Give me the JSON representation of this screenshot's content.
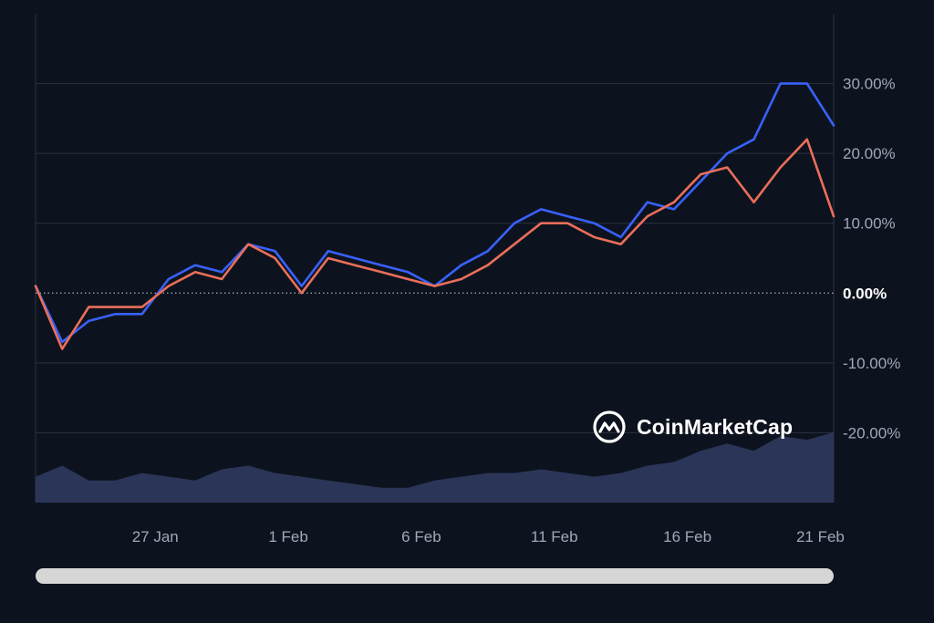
{
  "chart_data": {
    "type": "line",
    "x_tick_labels": [
      "27 Jan",
      "1 Feb",
      "6 Feb",
      "11 Feb",
      "16 Feb",
      "21 Feb"
    ],
    "y_tick_labels": [
      "30.00%",
      "20.00%",
      "10.00%",
      "0.00%",
      "-10.00%",
      "-20.00%"
    ],
    "ylim": [
      -30,
      40
    ],
    "y_ticks": [
      30,
      20,
      10,
      0,
      -10,
      -20
    ],
    "grid": true,
    "x": [
      0,
      1,
      2,
      3,
      4,
      5,
      6,
      7,
      8,
      9,
      10,
      11,
      12,
      13,
      14,
      15,
      16,
      17,
      18,
      19,
      20,
      21,
      22,
      23,
      24,
      25,
      26,
      27,
      28,
      29,
      30
    ],
    "x_tick_positions": [
      4.5,
      9.5,
      14.5,
      19.5,
      24.5,
      29.5
    ],
    "series": [
      {
        "color": "#3861fb",
        "values": [
          1,
          -7,
          -4,
          -3,
          -3,
          2,
          4,
          3,
          7,
          6,
          1,
          6,
          5,
          4,
          3,
          1,
          4,
          6,
          10,
          12,
          11,
          10,
          8,
          13,
          12,
          16,
          20,
          22,
          30,
          30,
          24
        ]
      },
      {
        "color": "#ea6f5a",
        "values": [
          1,
          -8,
          -2,
          -2,
          -2,
          1,
          3,
          2,
          7,
          5,
          0,
          5,
          4,
          3,
          2,
          1,
          2,
          4,
          7,
          10,
          10,
          8,
          7,
          11,
          13,
          17,
          18,
          13,
          18,
          22,
          11
        ]
      }
    ],
    "volume": {
      "color": "#2f3a5e",
      "values": [
        35,
        50,
        30,
        30,
        40,
        35,
        30,
        45,
        50,
        40,
        35,
        30,
        25,
        20,
        20,
        30,
        35,
        40,
        40,
        45,
        40,
        35,
        40,
        50,
        55,
        70,
        80,
        70,
        90,
        85,
        95
      ]
    }
  },
  "watermark": {
    "text": "CoinMarketCap",
    "icon": "coinmarketcap-logo-icon"
  },
  "scrollbar": {
    "color": "#d6d6d6"
  }
}
